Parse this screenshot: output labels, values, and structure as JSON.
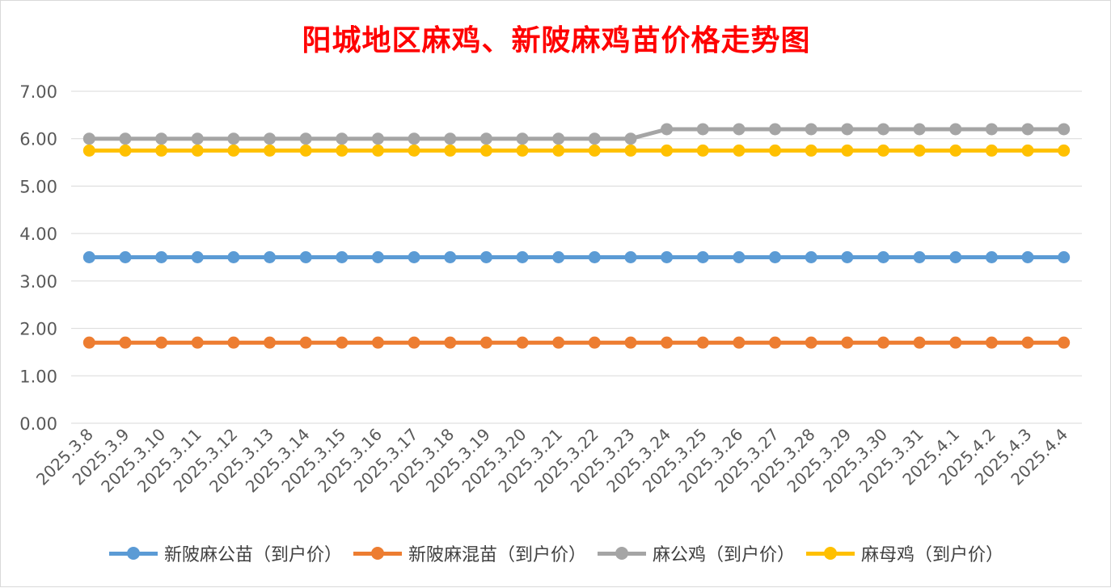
{
  "chart_data": {
    "type": "line",
    "title": "阳城地区麻鸡、新陂麻鸡苗价格走势图",
    "xlabel": "",
    "ylabel": "",
    "ylim": [
      0,
      7
    ],
    "yticks": [
      "0.00",
      "1.00",
      "2.00",
      "3.00",
      "4.00",
      "5.00",
      "6.00",
      "7.00"
    ],
    "grid": true,
    "legend_position": "bottom",
    "categories": [
      "2025.3.8",
      "2025.3.9",
      "2025.3.10",
      "2025.3.11",
      "2025.3.12",
      "2025.3.13",
      "2025.3.14",
      "2025.3.15",
      "2025.3.16",
      "2025.3.17",
      "2025.3.18",
      "2025.3.19",
      "2025.3.20",
      "2025.3.21",
      "2025.3.22",
      "2025.3.23",
      "2025.3.24",
      "2025.3.25",
      "2025.3.26",
      "2025.3.27",
      "2025.3.28",
      "2025.3.29",
      "2025.3.30",
      "2025.3.31",
      "2025.4.1",
      "2025.4.2",
      "2025.4.3",
      "2025.4.4"
    ],
    "series": [
      {
        "name": "新陂麻公苗（到户价）",
        "color": "#5b9bd5",
        "values": [
          3.5,
          3.5,
          3.5,
          3.5,
          3.5,
          3.5,
          3.5,
          3.5,
          3.5,
          3.5,
          3.5,
          3.5,
          3.5,
          3.5,
          3.5,
          3.5,
          3.5,
          3.5,
          3.5,
          3.5,
          3.5,
          3.5,
          3.5,
          3.5,
          3.5,
          3.5,
          3.5,
          3.5
        ]
      },
      {
        "name": "新陂麻混苗（到户价）",
        "color": "#ed7d31",
        "values": [
          1.7,
          1.7,
          1.7,
          1.7,
          1.7,
          1.7,
          1.7,
          1.7,
          1.7,
          1.7,
          1.7,
          1.7,
          1.7,
          1.7,
          1.7,
          1.7,
          1.7,
          1.7,
          1.7,
          1.7,
          1.7,
          1.7,
          1.7,
          1.7,
          1.7,
          1.7,
          1.7,
          1.7
        ]
      },
      {
        "name": "麻公鸡（到户价）",
        "color": "#a5a5a5",
        "values": [
          6.0,
          6.0,
          6.0,
          6.0,
          6.0,
          6.0,
          6.0,
          6.0,
          6.0,
          6.0,
          6.0,
          6.0,
          6.0,
          6.0,
          6.0,
          6.0,
          6.2,
          6.2,
          6.2,
          6.2,
          6.2,
          6.2,
          6.2,
          6.2,
          6.2,
          6.2,
          6.2,
          6.2
        ]
      },
      {
        "name": "麻母鸡（到户价）",
        "color": "#ffc000",
        "values": [
          5.75,
          5.75,
          5.75,
          5.75,
          5.75,
          5.75,
          5.75,
          5.75,
          5.75,
          5.75,
          5.75,
          5.75,
          5.75,
          5.75,
          5.75,
          5.75,
          5.75,
          5.75,
          5.75,
          5.75,
          5.75,
          5.75,
          5.75,
          5.75,
          5.75,
          5.75,
          5.75,
          5.75
        ]
      }
    ]
  }
}
